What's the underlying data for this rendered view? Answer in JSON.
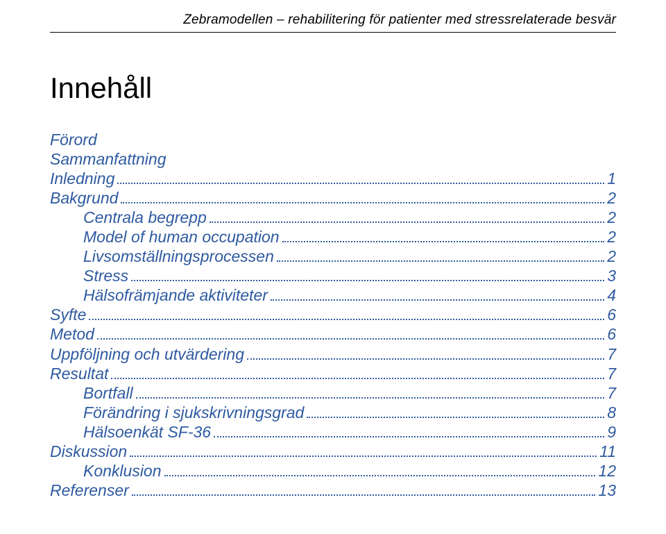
{
  "running_header": "Zebramodellen – rehabilitering för patienter med stressrelaterade besvär",
  "title": "Innehåll",
  "colors": {
    "link": "#2e5aa0",
    "text": "#000000",
    "background": "#ffffff",
    "rule": "#000000"
  },
  "typography": {
    "header_font_size_pt": 14,
    "title_font_size_pt": 32,
    "toc_font_size_pt": 17,
    "toc_line_height": 1.22,
    "font_family": "Arial"
  },
  "toc": [
    {
      "label": "Förord",
      "level": 0,
      "page": null
    },
    {
      "label": "Sammanfattning",
      "level": 0,
      "page": null
    },
    {
      "label": "Inledning",
      "level": 0,
      "page": "1"
    },
    {
      "label": "Bakgrund",
      "level": 0,
      "page": "2"
    },
    {
      "label": "Centrala begrepp",
      "level": 1,
      "page": "2"
    },
    {
      "label": "Model of human occupation",
      "level": 1,
      "page": "2"
    },
    {
      "label": "Livsomställningsprocessen",
      "level": 1,
      "page": "2"
    },
    {
      "label": "Stress",
      "level": 1,
      "page": "3"
    },
    {
      "label": "Hälsofrämjande aktiviteter",
      "level": 1,
      "page": "4"
    },
    {
      "label": "Syfte",
      "level": 0,
      "page": "6"
    },
    {
      "label": "Metod",
      "level": 0,
      "page": "6"
    },
    {
      "label": "Uppföljning och utvärdering",
      "level": 0,
      "page": "7"
    },
    {
      "label": "Resultat",
      "level": 0,
      "page": "7"
    },
    {
      "label": "Bortfall",
      "level": 1,
      "page": "7"
    },
    {
      "label": "Förändring i sjukskrivningsgrad",
      "level": 1,
      "page": "8"
    },
    {
      "label": "Hälsoenkät SF-36",
      "level": 1,
      "page": "9"
    },
    {
      "label": "Diskussion",
      "level": 0,
      "page": "11"
    },
    {
      "label": "Konklusion",
      "level": 1,
      "page": "12"
    },
    {
      "label": "Referenser",
      "level": 0,
      "page": "13"
    }
  ]
}
